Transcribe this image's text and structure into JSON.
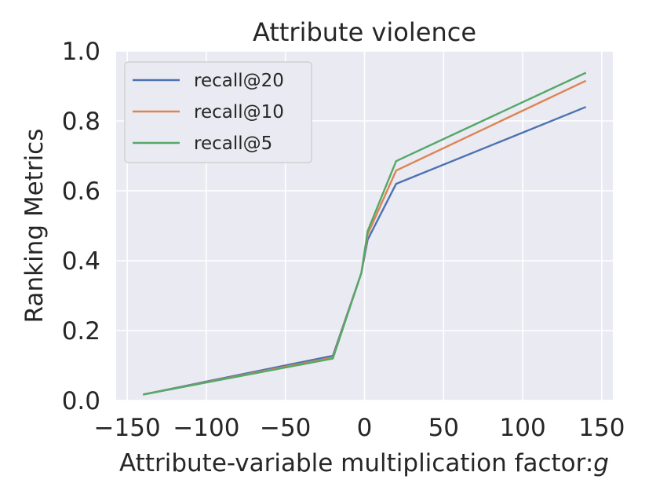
{
  "chart_data": {
    "type": "line",
    "title": "Attribute violence",
    "xlabel_prefix": "Attribute-variable multiplication factor:",
    "xlabel_symbol": "g",
    "ylabel": "Ranking Metrics",
    "xlim": [
      -157,
      157
    ],
    "ylim": [
      0,
      1.0
    ],
    "xticks": [
      -150,
      -100,
      -50,
      0,
      50,
      100,
      150
    ],
    "xtick_labels": [
      "−150",
      "−100",
      "−50",
      "0",
      "50",
      "100",
      "150"
    ],
    "yticks": [
      0.0,
      0.2,
      0.4,
      0.6,
      0.8,
      1.0
    ],
    "ytick_labels": [
      "0.0",
      "0.2",
      "0.4",
      "0.6",
      "0.8",
      "1.0"
    ],
    "grid": true,
    "legend_position": "upper-left",
    "x": [
      -140,
      -20,
      -2,
      2,
      20,
      140
    ],
    "series": [
      {
        "name": "recall@20",
        "color": "#4c72b0",
        "values": [
          0.017,
          0.128,
          0.365,
          0.46,
          0.62,
          0.84
        ]
      },
      {
        "name": "recall@10",
        "color": "#dd8452",
        "values": [
          0.017,
          0.123,
          0.365,
          0.475,
          0.658,
          0.915
        ]
      },
      {
        "name": "recall@5",
        "color": "#55a868",
        "values": [
          0.017,
          0.12,
          0.365,
          0.485,
          0.685,
          0.938
        ]
      }
    ]
  }
}
